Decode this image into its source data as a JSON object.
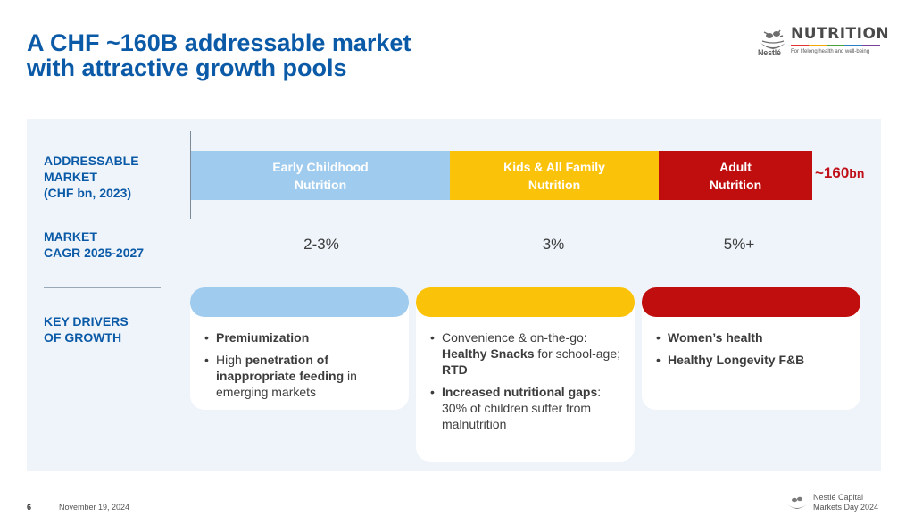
{
  "title": "A CHF ~160B addressable market\nwith attractive growth pools",
  "logo": {
    "brand": "Nestlé",
    "product": "NUTRITION",
    "tagline": "For lifelong health and well-being",
    "nest_icon": "nest-birds-icon"
  },
  "rows": {
    "market_label": "ADDRESSABLE\nMARKET\n(CHF bn, 2023)",
    "cagr_label": "MARKET\nCAGR 2025-2027",
    "drivers_label": "KEY DRIVERS\nOF GROWTH"
  },
  "segments": [
    {
      "label": "Early Childhood\nNutrition",
      "color": "#9fcbee",
      "cagr": "2-3%"
    },
    {
      "label": "Kids & All Family\nNutrition",
      "color": "#fbc20a",
      "cagr": "3%"
    },
    {
      "label": "Adult\nNutrition",
      "color": "#c00d0d",
      "cagr": "5%+"
    }
  ],
  "total": {
    "prefix": "~160",
    "unit": "bn"
  },
  "drivers": [
    {
      "bullets": [
        {
          "parts": [
            {
              "text": "Premiumization",
              "bold": true
            }
          ]
        },
        {
          "parts": [
            {
              "text": "High ",
              "bold": false
            },
            {
              "text": "penetration of inappropriate feeding",
              "bold": true
            },
            {
              "text": " in emerging markets",
              "bold": false
            }
          ]
        }
      ]
    },
    {
      "bullets": [
        {
          "parts": [
            {
              "text": "Convenience & on-the-go: ",
              "bold": false
            },
            {
              "text": "Healthy Snacks",
              "bold": true
            },
            {
              "text": " for school-age; ",
              "bold": false
            },
            {
              "text": "RTD",
              "bold": true
            }
          ]
        },
        {
          "parts": [
            {
              "text": "Increased nutritional gaps",
              "bold": true
            },
            {
              "text": ": 30% of children suffer from malnutrition",
              "bold": false
            }
          ]
        }
      ]
    },
    {
      "bullets": [
        {
          "parts": [
            {
              "text": "Women’s health",
              "bold": true
            }
          ]
        },
        {
          "parts": [
            {
              "text": "Healthy Longevity F&B",
              "bold": true
            }
          ]
        }
      ]
    }
  ],
  "footer": {
    "page_number": "6",
    "date": "November 19, 2024",
    "event": "Nestlé Capital\nMarkets Day 2024"
  }
}
